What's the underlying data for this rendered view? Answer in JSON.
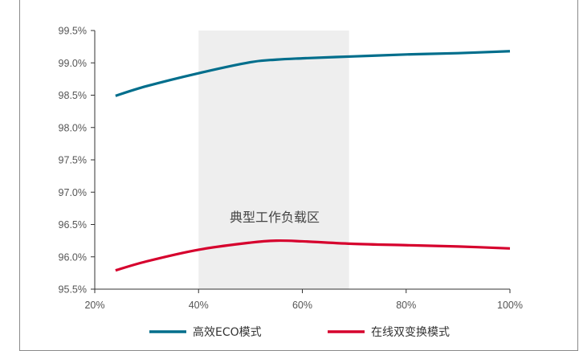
{
  "chart_data": {
    "type": "line",
    "title": "",
    "xlabel": "",
    "ylabel": "",
    "x": [
      24,
      30,
      40,
      50,
      55,
      60,
      70,
      80,
      90,
      100
    ],
    "x_tick_labels": [
      "20%",
      "40%",
      "60%",
      "80%",
      "100%"
    ],
    "x_ticks": [
      20,
      40,
      60,
      80,
      100
    ],
    "xlim": [
      20,
      100
    ],
    "y_tick_labels": [
      "99.5%",
      "99.0%",
      "98.5%",
      "98.0%",
      "97.5%",
      "97.0%",
      "96.5%",
      "96.0%",
      "95.5%"
    ],
    "y_ticks": [
      99.5,
      99.0,
      98.5,
      98.0,
      97.5,
      97.0,
      96.5,
      96.0,
      95.5
    ],
    "ylim": [
      95.5,
      99.5
    ],
    "grid": false,
    "series": [
      {
        "name": "高效ECO模式",
        "color": "#006e8c",
        "values": [
          98.49,
          98.64,
          98.84,
          99.01,
          99.05,
          99.07,
          99.1,
          99.13,
          99.15,
          99.18
        ]
      },
      {
        "name": "在线双变换模式",
        "color": "#d6002d",
        "values": [
          95.79,
          95.93,
          96.11,
          96.22,
          96.25,
          96.24,
          96.2,
          96.18,
          96.16,
          96.13
        ]
      }
    ],
    "highlight_band": {
      "x_range": [
        40,
        69
      ],
      "label": "典型工作负载区",
      "color": "#eeeeee"
    },
    "legend_position": "bottom-center"
  }
}
